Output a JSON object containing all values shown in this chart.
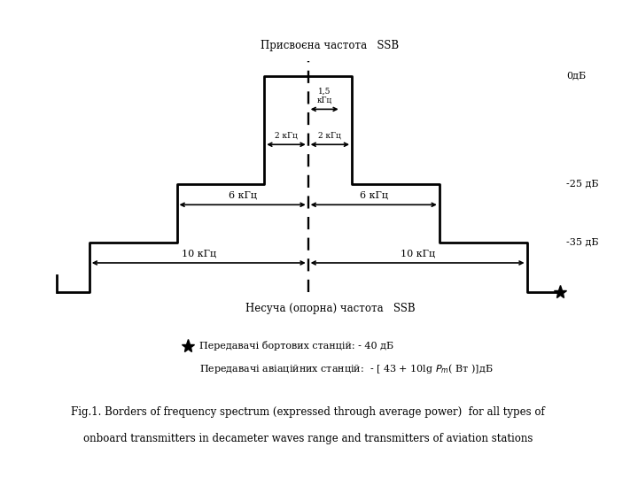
{
  "title_top": "Присвоєна частота   SSB",
  "title_bottom": "Несуча (опорна) частота   SSB",
  "label_0db": "0дБ",
  "label_25db": "-25 дБ",
  "label_35db": "-35 дБ",
  "label_15khz": "1,5\nкГц",
  "label_2khz_left": "2 кГц",
  "label_2khz_right": "2 кГц",
  "label_6khz_left": "6 кГц",
  "label_6khz_right": "6 кГц",
  "label_10khz_left": "10 кГц",
  "label_10khz_right": "10 кГц",
  "legend_star_text": "Передавачі бортових станцій: - 40 дБ",
  "legend_formula_pre": "Передавачі авіаційних станцій:  - [ 43 + 10lg ",
  "legend_formula_end": "( Вт )]дБ",
  "caption_line1": "Fig.1. Borders of frequency spectrum (expressed through average power)  for all types of",
  "caption_line2": "onboard transmitters in decameter waves range and transmitters of aviation stations",
  "line_color": "#000000",
  "bg_color": "#ffffff",
  "lw": 2.0
}
